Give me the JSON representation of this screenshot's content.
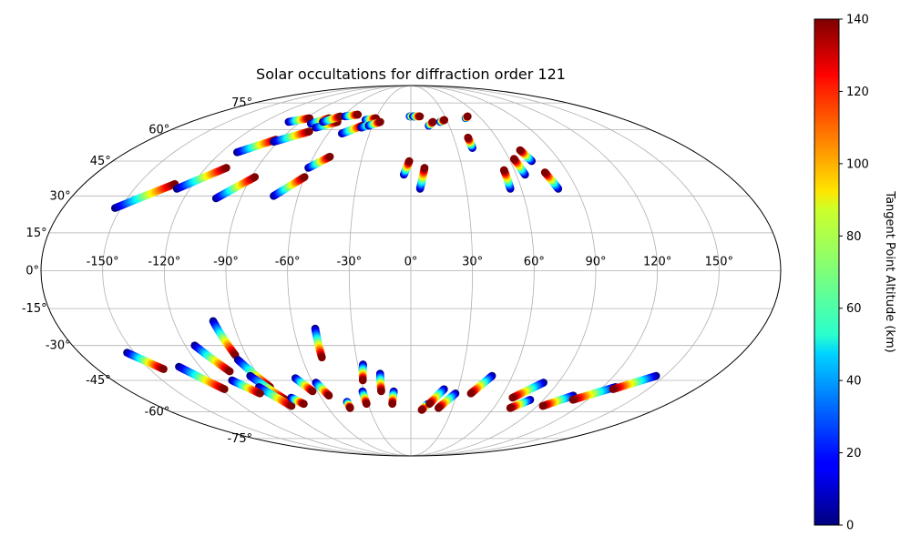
{
  "chart_data": {
    "type": "scatter",
    "projection": "mollweide",
    "title": "Solar occultations for diffraction order 121",
    "lon_ticks": [
      -150,
      -120,
      -90,
      -60,
      -30,
      0,
      30,
      60,
      90,
      120,
      150
    ],
    "lon_tick_labels": [
      "-150°",
      "-120°",
      "-90°",
      "-60°",
      "-30°",
      "0°",
      "30°",
      "60°",
      "90°",
      "120°",
      "150°"
    ],
    "lat_ticks": [
      -75,
      -60,
      -45,
      -30,
      -15,
      0,
      15,
      30,
      45,
      60,
      75
    ],
    "lat_tick_labels": [
      "-75°",
      "-60°",
      "-45°",
      "-30°",
      "-15°",
      "0°",
      "15°",
      "30°",
      "45°",
      "60°",
      "75°"
    ],
    "grid": true,
    "colorbar": {
      "label": "Tangent Point Altitude (km)",
      "min": 0,
      "max": 140,
      "ticks": [
        0,
        20,
        40,
        60,
        80,
        100,
        120,
        140
      ],
      "tick_labels": [
        "0",
        "20",
        "40",
        "60",
        "80",
        "100",
        "120",
        "140"
      ],
      "colormap": "jet"
    },
    "tracks": [
      {
        "lon0": -153,
        "lat0": 25,
        "lon1": -130,
        "lat1": 35
      },
      {
        "lon0": -127,
        "lat0": 33,
        "lon1": -108,
        "lat1": 42
      },
      {
        "lon0": -103,
        "lat0": 29,
        "lon1": -88,
        "lat1": 38
      },
      {
        "lon0": -73,
        "lat0": 30,
        "lon1": -60,
        "lat1": 38
      },
      {
        "lon0": -60,
        "lat0": 42,
        "lon1": -50,
        "lat1": 47
      },
      {
        "lon0": -110,
        "lat0": 49,
        "lon1": -93,
        "lat1": 55
      },
      {
        "lon0": -93,
        "lat0": 54,
        "lon1": -75,
        "lat1": 59
      },
      {
        "lon0": -100,
        "lat0": 64,
        "lon1": -87,
        "lat1": 66
      },
      {
        "lon0": -80,
        "lat0": 63,
        "lon1": -70,
        "lat1": 66
      },
      {
        "lon0": -73,
        "lat0": 61,
        "lon1": -60,
        "lat1": 64
      },
      {
        "lon0": -72,
        "lat0": 64,
        "lon1": -62,
        "lat1": 67
      },
      {
        "lon0": -58,
        "lat0": 67,
        "lon1": -48,
        "lat1": 68
      },
      {
        "lon0": -50,
        "lat0": 58,
        "lon1": -38,
        "lat1": 62
      },
      {
        "lon0": -38,
        "lat0": 65,
        "lon1": -30,
        "lat1": 66
      },
      {
        "lon0": -38,
        "lat0": 61,
        "lon1": -28,
        "lat1": 64
      },
      {
        "lon0": -33,
        "lat0": 62,
        "lon1": -25,
        "lat1": 64
      },
      {
        "lon0": -1,
        "lat0": 67,
        "lon1": 3,
        "lat1": 67
      },
      {
        "lon0": 2,
        "lat0": 67,
        "lon1": 8,
        "lat1": 67
      },
      {
        "lon0": -4,
        "lat0": 39,
        "lon1": -1,
        "lat1": 45
      },
      {
        "lon0": 5,
        "lat0": 33,
        "lon1": 8,
        "lat1": 42
      },
      {
        "lon0": 14,
        "lat0": 62,
        "lon1": 18,
        "lat1": 64
      },
      {
        "lon0": 24,
        "lat0": 64,
        "lon1": 28,
        "lat1": 65
      },
      {
        "lon0": 40,
        "lat0": 51,
        "lon1": 40,
        "lat1": 56
      },
      {
        "lon0": 47,
        "lat0": 66,
        "lon1": 50,
        "lat1": 67
      },
      {
        "lon0": 54,
        "lat0": 33,
        "lon1": 54,
        "lat1": 41
      },
      {
        "lon0": 65,
        "lat0": 39,
        "lon1": 63,
        "lat1": 46
      },
      {
        "lon0": 73,
        "lat0": 45,
        "lon1": 70,
        "lat1": 50
      },
      {
        "lon0": 80,
        "lat0": 33,
        "lon1": 77,
        "lat1": 40
      },
      {
        "lon0": -154,
        "lat0": -33,
        "lon1": -142,
        "lat1": -40
      },
      {
        "lon0": -132,
        "lat0": -39,
        "lon1": -118,
        "lat1": -49
      },
      {
        "lon0": -115,
        "lat0": -30,
        "lon1": -105,
        "lat1": -41
      },
      {
        "lon0": -100,
        "lat0": -20,
        "lon1": -96,
        "lat1": -34
      },
      {
        "lon0": -96,
        "lat0": -36,
        "lon1": -88,
        "lat1": -48
      },
      {
        "lon0": -95,
        "lat0": -43,
        "lon1": -85,
        "lat1": -54
      },
      {
        "lon0": -95,
        "lat0": -48,
        "lon1": -85,
        "lat1": -57
      },
      {
        "lon0": -108,
        "lat0": -45,
        "lon1": -98,
        "lat1": -51
      },
      {
        "lon0": -80,
        "lat0": -53,
        "lon1": -75,
        "lat1": -56
      },
      {
        "lon0": -69,
        "lat0": -44,
        "lon1": -63,
        "lat1": -50
      },
      {
        "lon0": -58,
        "lat0": -46,
        "lon1": -54,
        "lat1": -52
      },
      {
        "lon0": -49,
        "lat0": -23,
        "lon1": -49,
        "lat1": -35
      },
      {
        "lon0": -44,
        "lat0": -55,
        "lon1": -44,
        "lat1": -58
      },
      {
        "lon0": -27,
        "lat0": -38,
        "lon1": -29,
        "lat1": -45
      },
      {
        "lon0": -31,
        "lat0": -50,
        "lon1": -31,
        "lat1": -56
      },
      {
        "lon0": -18,
        "lat0": -42,
        "lon1": -19,
        "lat1": -50
      },
      {
        "lon0": -11,
        "lat0": -50,
        "lon1": -13,
        "lat1": -56
      },
      {
        "lon0": 12,
        "lat0": -56,
        "lon1": 8,
        "lat1": -59
      },
      {
        "lon0": 21,
        "lat0": -49,
        "lon1": 13,
        "lat1": -56
      },
      {
        "lon0": 29,
        "lat0": -51,
        "lon1": 20,
        "lat1": -58
      },
      {
        "lon0": 48,
        "lat0": -43,
        "lon1": 39,
        "lat1": -51
      },
      {
        "lon0": 81,
        "lat0": -46,
        "lon1": 68,
        "lat1": -53
      },
      {
        "lon0": 81,
        "lat0": -54,
        "lon1": 72,
        "lat1": -58
      },
      {
        "lon0": 107,
        "lat0": -52,
        "lon1": 94,
        "lat1": -57
      },
      {
        "lon0": 128,
        "lat0": -48,
        "lon1": 110,
        "lat1": -54
      },
      {
        "lon0": 145,
        "lat0": -43,
        "lon1": 128,
        "lat1": -49
      }
    ]
  },
  "colors": {
    "grid": "#b0b0b0",
    "outline": "#000000"
  }
}
